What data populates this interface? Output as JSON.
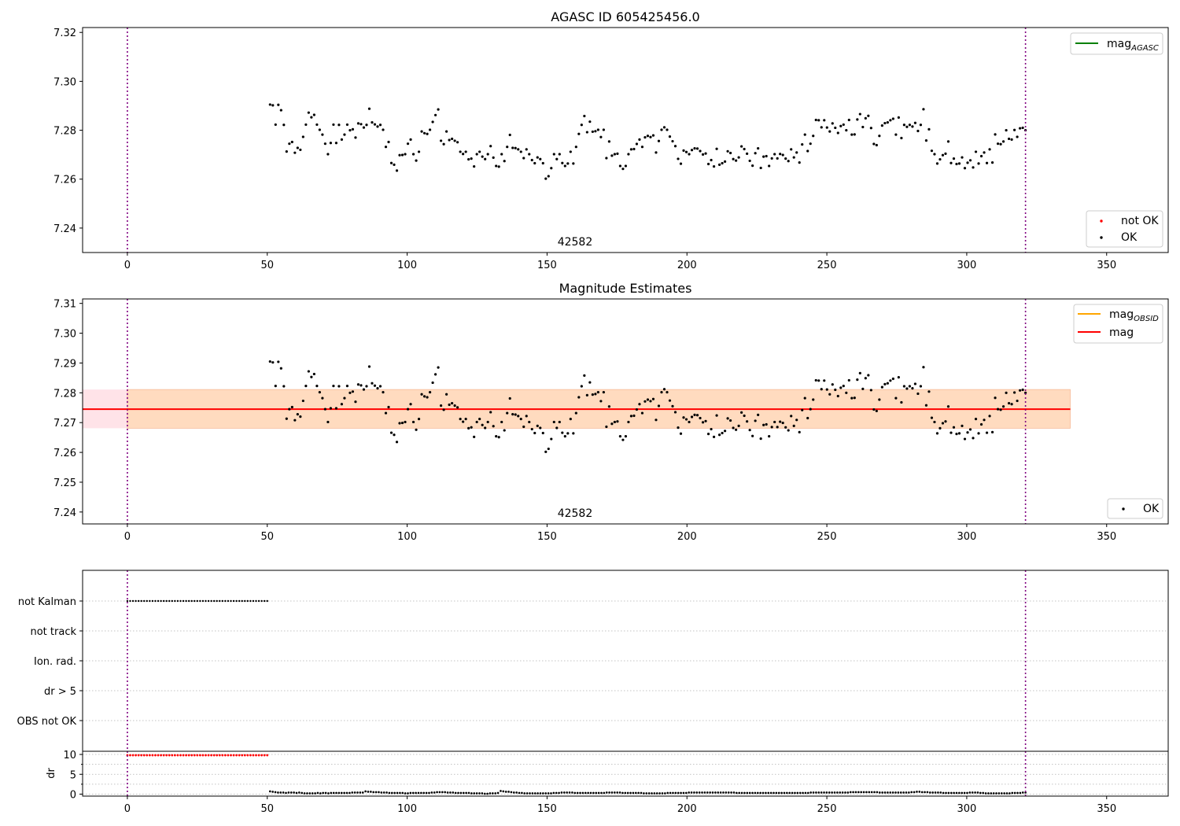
{
  "chart_data": [
    {
      "type": "scatter",
      "title": "AGASC ID 605425456.0",
      "xlim": [
        -16,
        372
      ],
      "ylim": [
        7.23,
        7.322
      ],
      "x_ticks": [
        0,
        50,
        100,
        150,
        200,
        250,
        300,
        350
      ],
      "y_ticks": [
        7.24,
        7.26,
        7.28,
        7.3,
        7.32
      ],
      "y_tick_labels": [
        "7.24",
        "7.26",
        "7.28",
        "7.30",
        "7.32"
      ],
      "vlines": [
        0,
        321
      ],
      "annotation": {
        "text": "42582",
        "x": 160
      },
      "legend_top": [
        {
          "label": "mag",
          "sub": "AGASC",
          "color": "#008000",
          "kind": "line"
        }
      ],
      "legend_bottom": [
        {
          "label": "not OK",
          "color": "#ff0000",
          "kind": "dot"
        },
        {
          "label": "OK",
          "color": "#000000",
          "kind": "dot"
        }
      ],
      "series": [
        {
          "name": "OK",
          "color": "#000000",
          "x_start": 51,
          "x_end": 321,
          "values": [
            7.2905,
            7.2902,
            7.2823,
            7.2904,
            7.2882,
            7.2822,
            7.2713,
            7.2745,
            7.2752,
            7.2708,
            7.2728,
            7.272,
            7.2773,
            7.2823,
            7.2872,
            7.2853,
            7.2863,
            7.2823,
            7.2802,
            7.2782,
            7.2745,
            7.2702,
            7.2748,
            7.2823,
            7.2748,
            7.2822,
            7.2762,
            7.2782,
            7.2823,
            7.28,
            7.2804,
            7.277,
            7.2828,
            7.2825,
            7.2811,
            7.2822,
            7.2888,
            7.2832,
            7.2824,
            7.2815,
            7.2822,
            7.2802,
            7.2732,
            7.2752,
            7.2666,
            7.2659,
            7.2635,
            7.2698,
            7.2699,
            7.2702,
            7.2745,
            7.2762,
            7.2702,
            7.2676,
            7.2712,
            7.2795,
            7.2788,
            7.2785,
            7.2802,
            7.2834,
            7.2862,
            7.2885,
            7.2757,
            7.2743,
            7.2795,
            7.276,
            7.2765,
            7.2757,
            7.2751,
            7.2712,
            7.2703,
            7.2712,
            7.2681,
            7.2684,
            7.2652,
            7.2702,
            7.2712,
            7.2692,
            7.2682,
            7.2702,
            7.2735,
            7.2688,
            7.2654,
            7.2651,
            7.2702,
            7.2674,
            7.2732,
            7.2781,
            7.2728,
            7.2727,
            7.2722,
            7.2712,
            7.2686,
            7.2722,
            7.2702,
            7.2678,
            7.2665,
            7.2689,
            7.2682,
            7.2665,
            7.2602,
            7.2612,
            7.2645,
            7.2702,
            7.2682,
            7.2702,
            7.2666,
            7.2654,
            7.2664,
            7.2712,
            7.2664,
            7.2732,
            7.2785,
            7.2822,
            7.2858,
            7.2792,
            7.2835,
            7.2794,
            7.2796,
            7.2802,
            7.2772,
            7.2802,
            7.2686,
            7.2754,
            7.2696,
            7.2702,
            7.2704,
            7.2654,
            7.2642,
            7.2654,
            7.2702,
            7.2722,
            7.2723,
            7.2744,
            7.2762,
            7.2732,
            7.2771,
            7.2777,
            7.2772,
            7.2779,
            7.2709,
            7.2756,
            7.2802,
            7.2812,
            7.2802,
            7.2774,
            7.2755,
            7.2735,
            7.2683,
            7.2663,
            7.2717,
            7.2711,
            7.2702,
            7.2719,
            7.2726,
            7.2725,
            7.2715,
            7.2701,
            7.2705,
            7.2662,
            7.2678,
            7.2652,
            7.2724,
            7.2659,
            7.2665,
            7.2672,
            7.2714,
            7.2707,
            7.2682,
            7.2676,
            7.2689,
            7.2734,
            7.2723,
            7.2704,
            7.2675,
            7.2655,
            7.2706,
            7.2726,
            7.2646,
            7.2692,
            7.2694,
            7.2654,
            7.2685,
            7.2702,
            7.2685,
            7.2703,
            7.2699,
            7.2684,
            7.2674,
            7.2722,
            7.2689,
            7.2709,
            7.2668,
            7.2742,
            7.2782,
            7.2715,
            7.2745,
            7.2777,
            7.2842,
            7.2841,
            7.2812,
            7.2841,
            7.2811,
            7.2795,
            7.2828,
            7.281,
            7.2789,
            7.2817,
            7.2823,
            7.28,
            7.2842,
            7.2782,
            7.2783,
            7.2844,
            7.2866,
            7.2813,
            7.2849,
            7.2859,
            7.2809,
            7.2744,
            7.2739,
            7.2777,
            7.2819,
            7.2829,
            7.2832,
            7.2841,
            7.2847,
            7.2782,
            7.2852,
            7.2768,
            7.2822,
            7.2814,
            7.2822,
            7.2815,
            7.283,
            7.2797,
            7.2822,
            7.2886,
            7.2758,
            7.2804,
            7.2716,
            7.2702,
            7.2664,
            7.2681,
            7.2698,
            7.2704,
            7.2754,
            7.2666,
            7.2684,
            7.2662,
            7.2664,
            7.2689,
            7.2645,
            7.2667,
            7.2677,
            7.2648,
            7.2712,
            7.2664,
            7.2694,
            7.2709,
            7.2666,
            7.2722,
            7.2668,
            7.2783,
            7.2745,
            7.2743,
            7.2754,
            7.28,
            7.2765,
            7.2762,
            7.2801,
            7.2773,
            7.2808,
            7.281,
            7.28
          ]
        },
        {
          "name": "not OK",
          "color": "#ff0000",
          "values": []
        }
      ]
    },
    {
      "type": "scatter",
      "title": "Magnitude Estimates",
      "xlim": [
        -16,
        372
      ],
      "ylim": [
        7.236,
        7.3115
      ],
      "x_ticks": [
        0,
        50,
        100,
        150,
        200,
        250,
        300,
        350
      ],
      "y_ticks": [
        7.24,
        7.25,
        7.26,
        7.27,
        7.28,
        7.29,
        7.3,
        7.31
      ],
      "y_tick_labels": [
        "7.24",
        "7.25",
        "7.26",
        "7.27",
        "7.28",
        "7.29",
        "7.30",
        "7.31"
      ],
      "vlines": [
        0,
        321
      ],
      "annotation": {
        "text": "42582",
        "x": 160
      },
      "mag_line": 7.2745,
      "band_outer": {
        "x0": -16,
        "x1": 337,
        "y0": 7.2681,
        "y1": 7.2811,
        "color": "#ffc0cb"
      },
      "band_inner": {
        "x0": 0,
        "x1": 337,
        "y0": 7.2681,
        "y1": 7.2811,
        "color": "#ffdab9"
      },
      "legend_top": [
        {
          "label": "mag",
          "sub": "OBSID",
          "color": "#ffa500",
          "kind": "line"
        },
        {
          "label": "mag",
          "sub": "",
          "color": "#ff0000",
          "kind": "line"
        }
      ],
      "legend_bottom": [
        {
          "label": "OK",
          "color": "#000000",
          "kind": "dot"
        }
      ],
      "series": [
        {
          "name": "OK",
          "color": "#000000",
          "ref": "same_as_panel_1"
        }
      ]
    },
    {
      "type": "scatter",
      "xlim": [
        -16,
        372
      ],
      "x_ticks": [
        0,
        50,
        100,
        150,
        200,
        250,
        300,
        350
      ],
      "vlines": [
        0,
        321
      ],
      "flag_categories": [
        "not Kalman",
        "not track",
        "Ion. rad.",
        "dr > 5",
        "OBS not OK"
      ],
      "flag_series": [
        {
          "category": "not Kalman",
          "x_start": 0,
          "x_end": 50,
          "color": "#000000"
        }
      ],
      "dr_panel": {
        "ylabel": "dr",
        "ylim": [
          -0.5,
          10.8
        ],
        "y_ticks": [
          0,
          5,
          10
        ],
        "bad": {
          "x_start": 0,
          "x_end": 50,
          "value": 9.8,
          "color": "#ff0000"
        },
        "good": {
          "x_start": 51,
          "x_end": 321,
          "color": "#000000",
          "values": [
            0.7,
            0.6,
            0.5,
            0.4,
            0.4,
            0.4,
            0.3,
            0.4,
            0.4,
            0.4,
            0.3,
            0.4,
            0.3,
            0.2,
            0.2,
            0.2,
            0.2,
            0.2,
            0.3,
            0.2,
            0.3,
            0.3,
            0.2,
            0.3,
            0.3,
            0.3,
            0.3,
            0.3,
            0.3,
            0.3,
            0.3,
            0.4,
            0.4,
            0.4,
            0.4,
            0.4,
            0.7,
            0.6,
            0.6,
            0.5,
            0.5,
            0.5,
            0.4,
            0.4,
            0.4,
            0.3,
            0.3,
            0.3,
            0.3,
            0.3,
            0.3,
            0.2,
            0.2,
            0.3,
            0.3,
            0.3,
            0.3,
            0.3,
            0.3,
            0.3,
            0.3,
            0.4,
            0.4,
            0.5,
            0.5,
            0.5,
            0.5,
            0.4,
            0.4,
            0.4,
            0.3,
            0.3,
            0.3,
            0.3,
            0.3,
            0.3,
            0.2,
            0.2,
            0.2,
            0.2,
            0.2,
            0.1,
            0.1,
            0.2,
            0.2,
            0.2,
            0.3,
            0.8,
            0.7,
            0.6,
            0.6,
            0.5,
            0.4,
            0.4,
            0.3,
            0.3,
            0.2,
            0.2,
            0.2,
            0.2,
            0.2,
            0.2,
            0.2,
            0.2,
            0.2,
            0.2,
            0.2,
            0.3,
            0.3,
            0.3,
            0.4,
            0.4,
            0.4,
            0.4,
            0.4,
            0.3,
            0.3,
            0.3,
            0.3,
            0.3,
            0.3,
            0.3,
            0.3,
            0.3,
            0.3,
            0.3,
            0.3,
            0.4,
            0.4,
            0.4,
            0.4,
            0.4,
            0.4,
            0.3,
            0.3,
            0.3,
            0.3,
            0.3,
            0.3,
            0.3,
            0.3,
            0.2,
            0.2,
            0.2,
            0.2,
            0.2,
            0.2,
            0.2,
            0.2,
            0.2,
            0.3,
            0.3,
            0.3,
            0.3,
            0.3,
            0.3,
            0.3,
            0.3,
            0.4,
            0.4,
            0.4,
            0.4,
            0.4,
            0.4,
            0.4,
            0.4,
            0.4,
            0.4,
            0.4,
            0.4,
            0.4,
            0.4,
            0.4,
            0.4,
            0.4,
            0.4,
            0.3,
            0.3,
            0.3,
            0.3,
            0.3,
            0.3,
            0.3,
            0.3,
            0.3,
            0.3,
            0.3,
            0.3,
            0.3,
            0.3,
            0.3,
            0.3,
            0.3,
            0.3,
            0.3,
            0.3,
            0.3,
            0.3,
            0.3,
            0.3,
            0.3,
            0.3,
            0.3,
            0.3,
            0.4,
            0.4,
            0.4,
            0.4,
            0.4,
            0.4,
            0.4,
            0.4,
            0.4,
            0.4,
            0.4,
            0.4,
            0.4,
            0.4,
            0.4,
            0.5,
            0.5,
            0.5,
            0.5,
            0.5,
            0.5,
            0.5,
            0.5,
            0.5,
            0.5,
            0.5,
            0.4,
            0.4,
            0.4,
            0.4,
            0.4,
            0.4,
            0.4,
            0.4,
            0.4,
            0.4,
            0.4,
            0.4,
            0.5,
            0.5,
            0.6,
            0.6,
            0.5,
            0.5,
            0.5,
            0.4,
            0.4,
            0.4,
            0.4,
            0.4,
            0.3,
            0.3,
            0.3,
            0.3,
            0.3,
            0.3,
            0.3,
            0.3,
            0.3,
            0.3,
            0.4,
            0.4,
            0.4,
            0.4,
            0.3,
            0.3,
            0.2,
            0.2,
            0.2,
            0.2,
            0.2,
            0.2,
            0.2,
            0.2,
            0.2,
            0.2,
            0.3,
            0.3,
            0.3,
            0.3,
            0.4,
            0.4
          ]
        }
      }
    }
  ]
}
